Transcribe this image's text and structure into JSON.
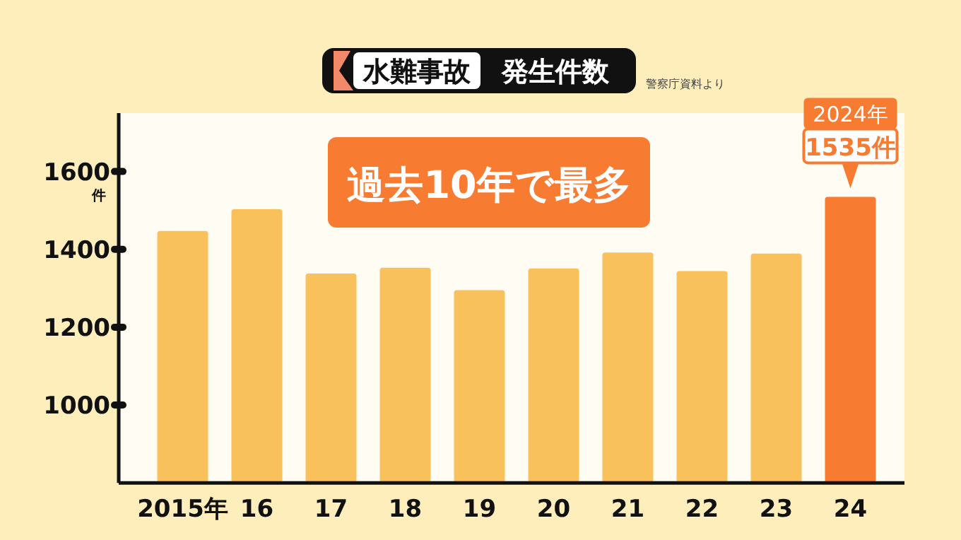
{
  "chart_data": {
    "type": "bar",
    "title": "水難事故",
    "subtitle": "発生件数",
    "ylabel": "件",
    "categories": [
      "2015年",
      "16",
      "17",
      "18",
      "19",
      "20",
      "21",
      "22",
      "23",
      "24"
    ],
    "values": [
      1447,
      1503,
      1338,
      1353,
      1295,
      1351,
      1392,
      1344,
      1389,
      1535
    ],
    "colors": [
      "#f9c15c",
      "#f9c15c",
      "#f9c15c",
      "#f9c15c",
      "#f9c15c",
      "#f9c15c",
      "#f9c15c",
      "#f9c15c",
      "#f9c15c",
      "#f77b30"
    ],
    "value_labels": [
      null,
      null,
      null,
      null,
      null,
      null,
      null,
      null,
      null,
      "1535件"
    ],
    "ylim": [
      800,
      1750
    ],
    "yticks": [
      1000,
      1200,
      1400,
      1600
    ],
    "annotations": [
      "過去10年で最多",
      "警察庁資料より",
      "2024年"
    ]
  }
}
